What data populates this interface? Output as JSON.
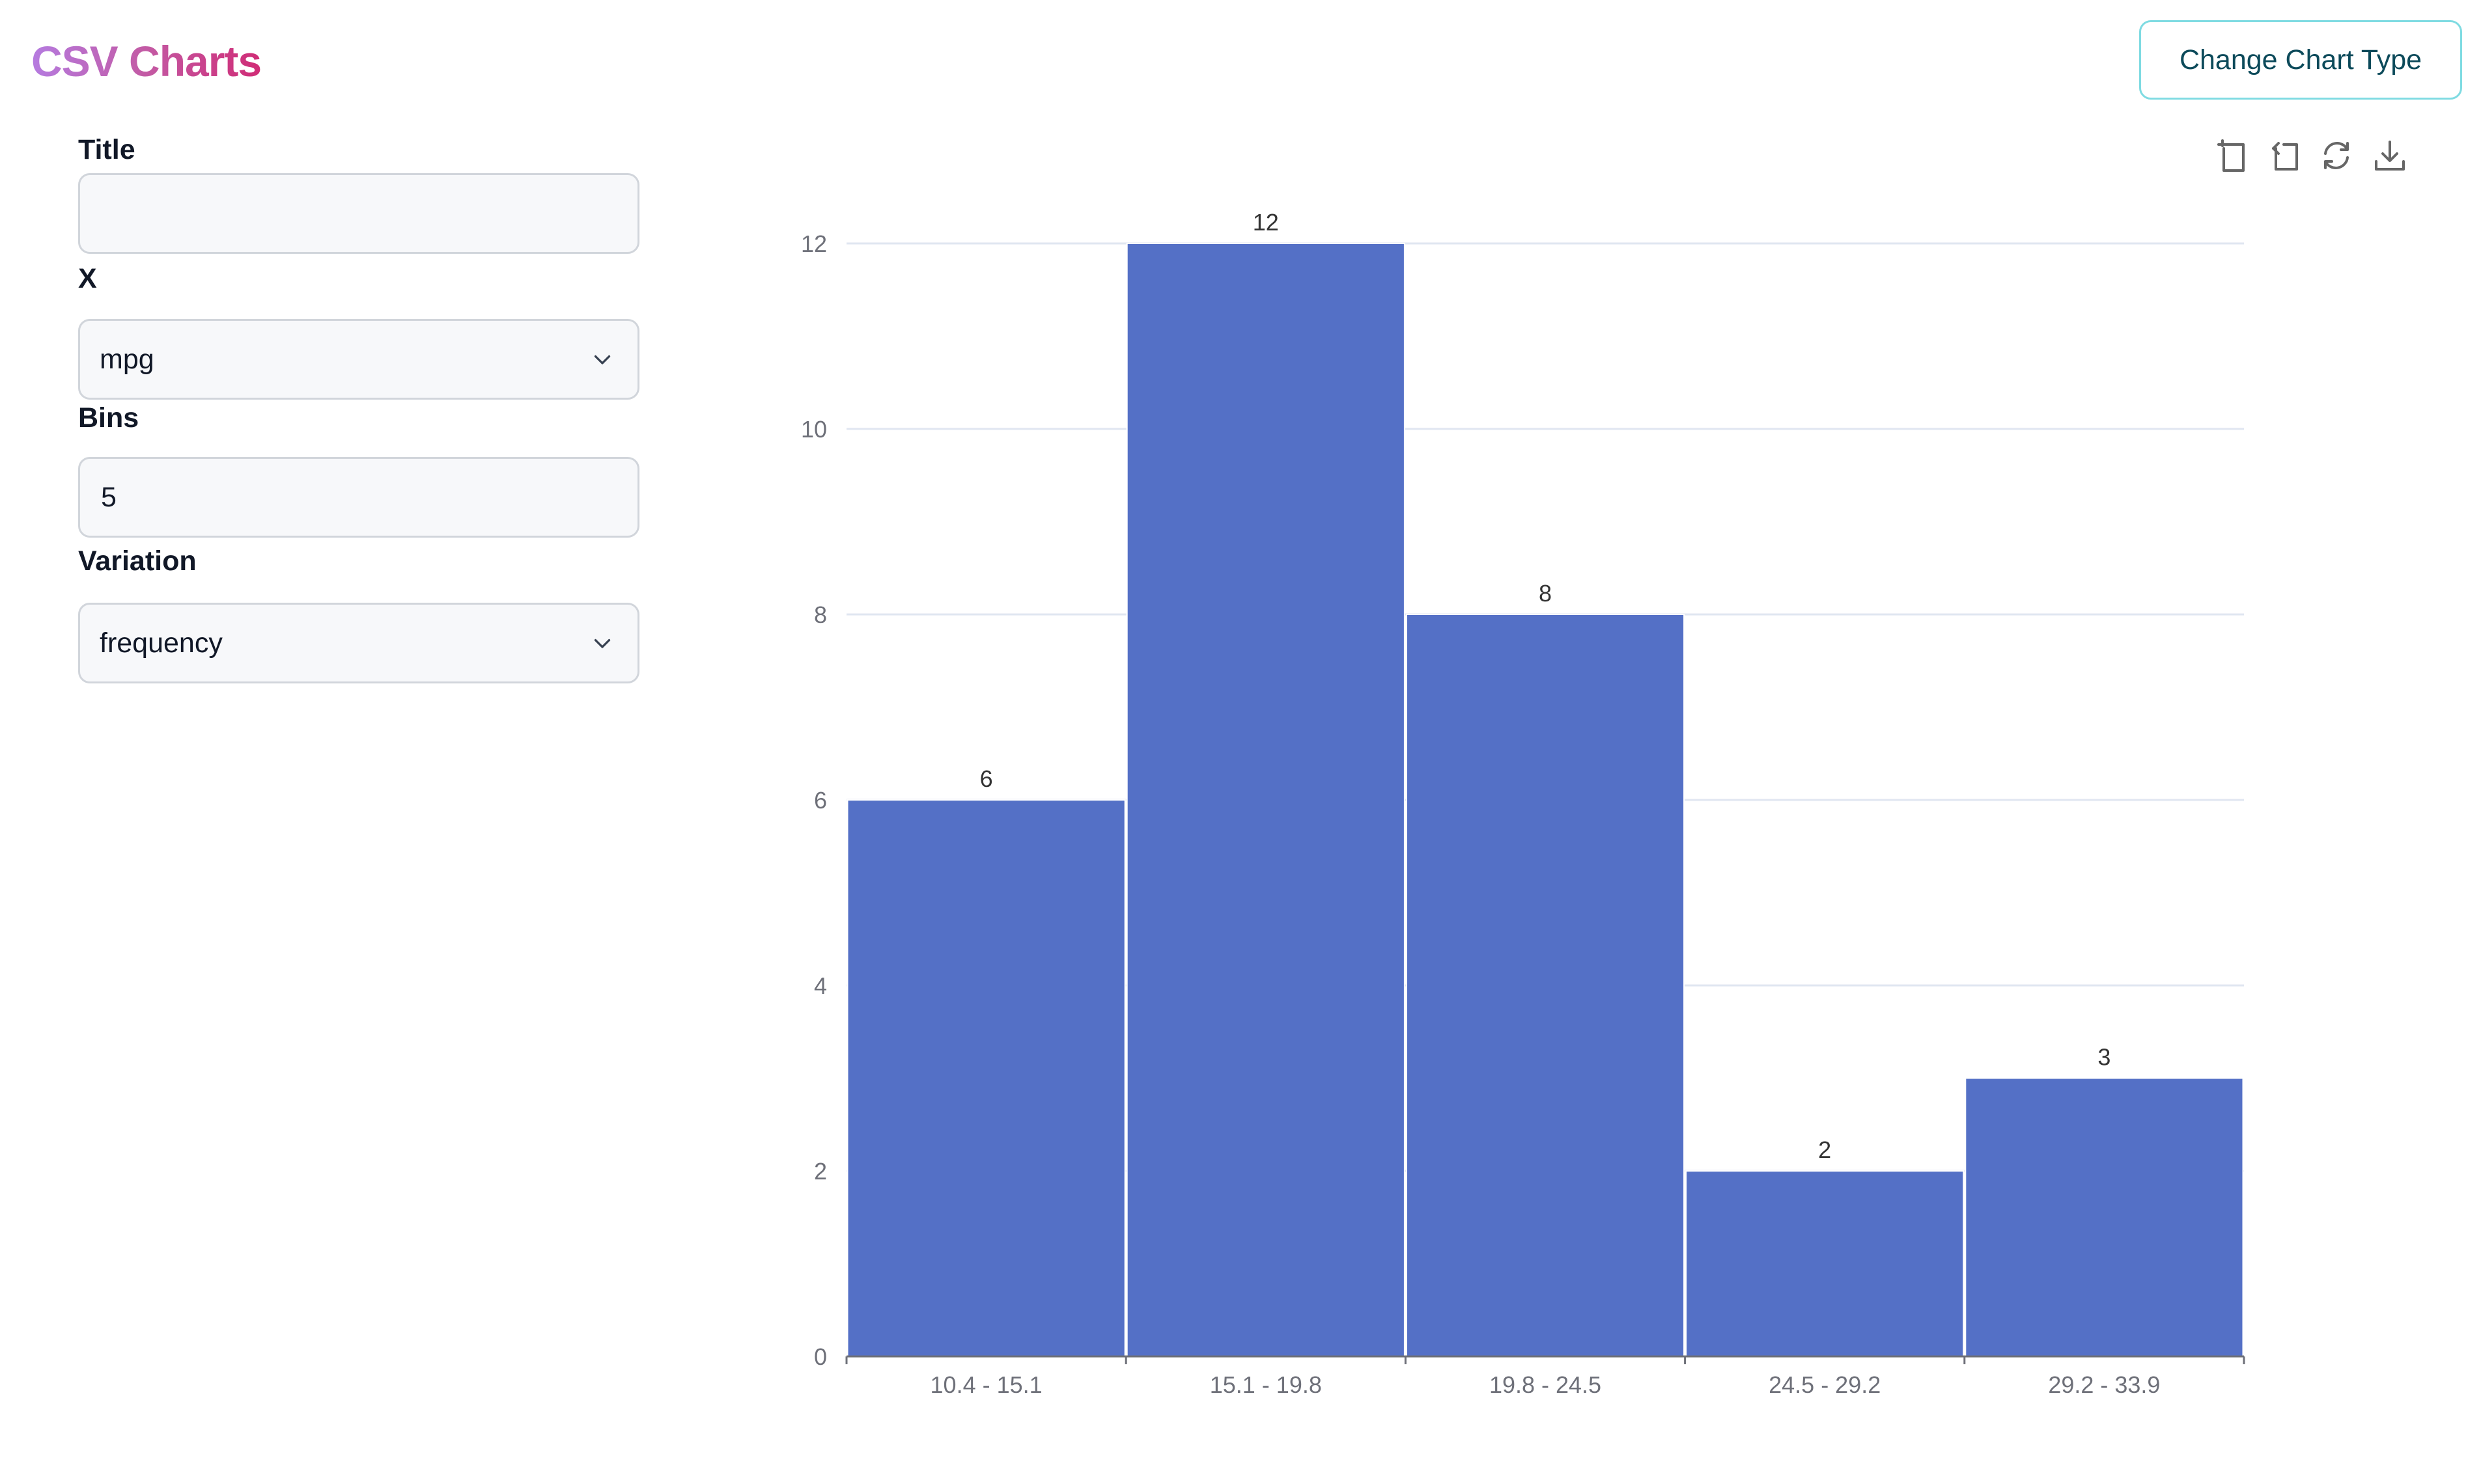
{
  "header": {
    "logo": "CSV Charts",
    "change_chart_type_label": "Change Chart Type"
  },
  "form": {
    "title_label": "Title",
    "title_value": "",
    "x_label": "X",
    "x_value": "mpg",
    "bins_label": "Bins",
    "bins_value": "5",
    "variation_label": "Variation",
    "variation_value": "frequency"
  },
  "toolbox": {
    "icons": [
      "zoom-select-icon",
      "zoom-reset-icon",
      "restore-icon",
      "save-image-icon"
    ]
  },
  "chart_data": {
    "type": "bar",
    "title": "",
    "xlabel": "",
    "ylabel": "",
    "categories": [
      "10.4 - 15.1",
      "15.1 - 19.8",
      "19.8 - 24.5",
      "24.5 - 29.2",
      "29.2 - 33.9"
    ],
    "values": [
      6,
      12,
      8,
      2,
      3
    ],
    "ylim": [
      0,
      12
    ],
    "yticks": [
      0,
      2,
      4,
      6,
      8,
      10,
      12
    ],
    "grid": true,
    "legend": "none",
    "bar_color": "#5470c6"
  },
  "colors": {
    "accent": "#7fdbe2",
    "bar": "#5470c6",
    "grid": "#e0e6f1",
    "axis": "#6e7079"
  }
}
